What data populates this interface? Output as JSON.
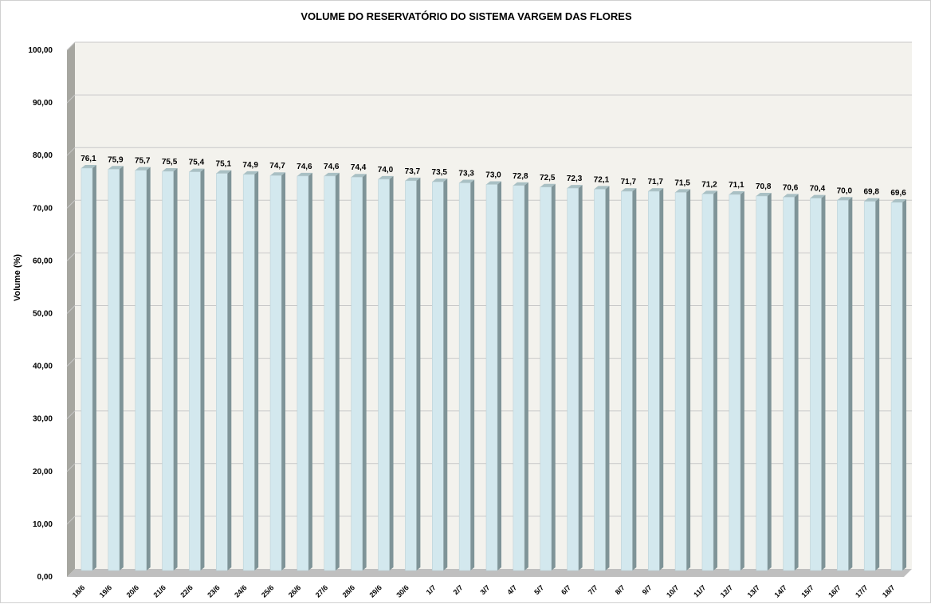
{
  "chart_data": {
    "type": "bar",
    "title": "VOLUME DO RESERVATÓRIO DO SISTEMA VARGEM DAS FLORES",
    "xlabel": "",
    "ylabel": "Volume (%)",
    "ylim": [
      0,
      100
    ],
    "yticks": [
      "0,00",
      "10,00",
      "20,00",
      "30,00",
      "40,00",
      "50,00",
      "60,00",
      "70,00",
      "80,00",
      "90,00",
      "100,00"
    ],
    "grid": true,
    "categories": [
      "18/6",
      "19/6",
      "20/6",
      "21/6",
      "22/6",
      "23/6",
      "24/6",
      "25/6",
      "26/6",
      "27/6",
      "28/6",
      "29/6",
      "30/6",
      "1/7",
      "2/7",
      "3/7",
      "4/7",
      "5/7",
      "6/7",
      "7/7",
      "8/7",
      "9/7",
      "10/7",
      "11/7",
      "12/7",
      "13/7",
      "14/7",
      "15/7",
      "16/7",
      "17/7",
      "18/7"
    ],
    "values": [
      76.1,
      75.9,
      75.7,
      75.5,
      75.4,
      75.1,
      74.9,
      74.7,
      74.6,
      74.6,
      74.4,
      74.0,
      73.7,
      73.5,
      73.3,
      73.0,
      72.8,
      72.5,
      72.3,
      72.1,
      71.7,
      71.7,
      71.5,
      71.2,
      71.1,
      70.8,
      70.6,
      70.4,
      70.0,
      69.8,
      69.6
    ],
    "data_labels": [
      "76,1",
      "75,9",
      "75,7",
      "75,5",
      "75,4",
      "75,1",
      "74,9",
      "74,7",
      "74,6",
      "74,6",
      "74,4",
      "74,0",
      "73,7",
      "73,5",
      "73,3",
      "73,0",
      "72,8",
      "72,5",
      "72,3",
      "72,1",
      "71,7",
      "71,7",
      "71,5",
      "71,2",
      "71,1",
      "70,8",
      "70,6",
      "70,4",
      "70,0",
      "69,8",
      "69,6"
    ],
    "colors": {
      "bar_front": "#d3e8ee",
      "bar_side": "#7f9498",
      "bar_top": "#a9c0c4",
      "plot_back": "#f3f2ed",
      "plot_wall": "#a6a6a0",
      "grid": "#c8c8c8"
    }
  }
}
